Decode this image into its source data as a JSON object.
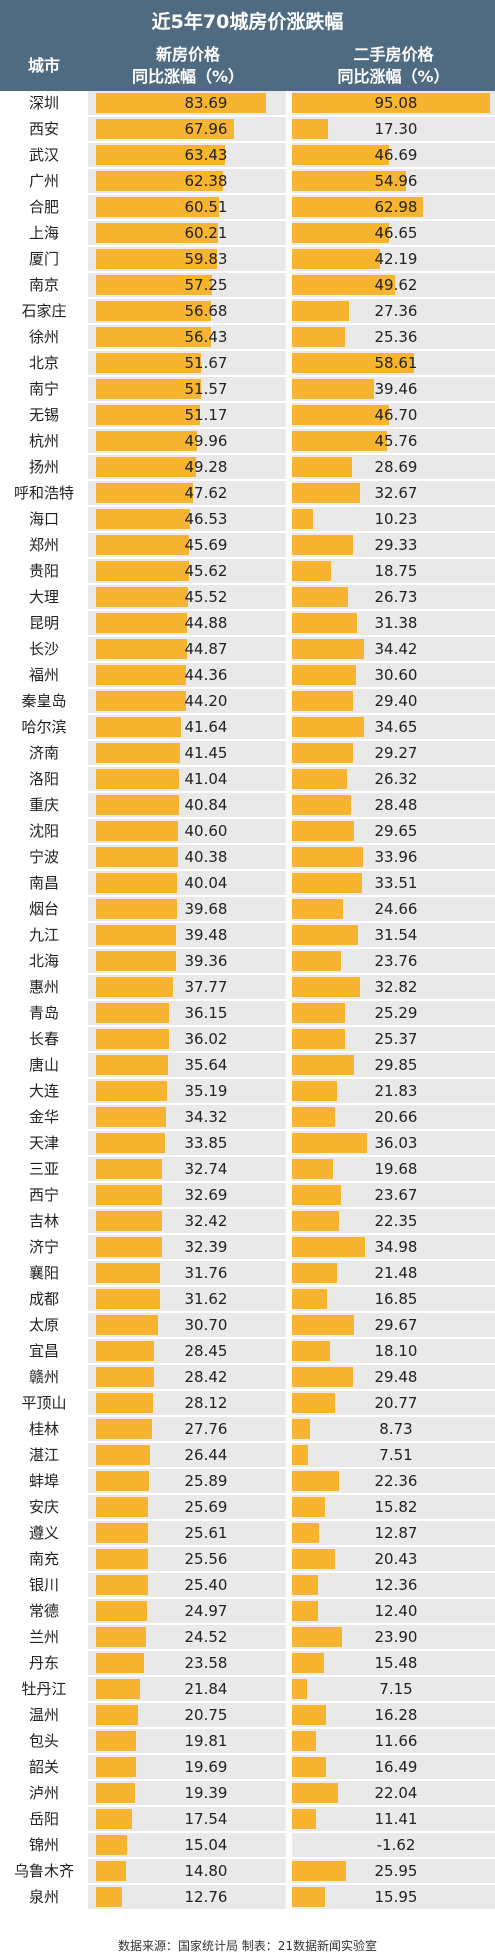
{
  "title": "近5年70城房价涨跌幅",
  "headers": {
    "city": "城市",
    "new_line1": "新房价格",
    "new_line2": "同比涨幅（%）",
    "second_line1": "二手房价格",
    "second_line2": "同比涨幅（%）"
  },
  "footer": "数据来源：国家统计局  制表：21数据新闻实验室",
  "colors": {
    "header_bg": "#4f6b82",
    "bar": "#f7b430",
    "negative_bar": "#d62b2b",
    "row_bg": "#e9e9e9"
  },
  "chart_data": {
    "type": "bar",
    "title": "近5年70城房价涨跌幅",
    "categories": [
      "深圳",
      "西安",
      "武汉",
      "广州",
      "合肥",
      "上海",
      "厦门",
      "南京",
      "石家庄",
      "徐州",
      "北京",
      "南宁",
      "无锡",
      "杭州",
      "扬州",
      "呼和浩特",
      "海口",
      "郑州",
      "贵阳",
      "大理",
      "昆明",
      "长沙",
      "福州",
      "秦皇岛",
      "哈尔滨",
      "济南",
      "洛阳",
      "重庆",
      "沈阳",
      "宁波",
      "南昌",
      "烟台",
      "九江",
      "北海",
      "惠州",
      "青岛",
      "长春",
      "唐山",
      "大连",
      "金华",
      "天津",
      "三亚",
      "西宁",
      "吉林",
      "济宁",
      "襄阳",
      "成都",
      "太原",
      "宜昌",
      "赣州",
      "平顶山",
      "桂林",
      "湛江",
      "蚌埠",
      "安庆",
      "遵义",
      "南充",
      "银川",
      "常德",
      "兰州",
      "丹东",
      "牡丹江",
      "温州",
      "包头",
      "韶关",
      "泸州",
      "岳阳",
      "锦州",
      "乌鲁木齐",
      "泉州"
    ],
    "series": [
      {
        "name": "新房价格同比涨幅（%）",
        "values": [
          83.69,
          67.96,
          63.43,
          62.38,
          60.51,
          60.21,
          59.83,
          57.25,
          56.68,
          56.43,
          51.67,
          51.57,
          51.17,
          49.96,
          49.28,
          47.62,
          46.53,
          45.69,
          45.62,
          45.52,
          44.88,
          44.87,
          44.36,
          44.2,
          41.64,
          41.45,
          41.04,
          40.84,
          40.6,
          40.38,
          40.04,
          39.68,
          39.48,
          39.36,
          37.77,
          36.15,
          36.02,
          35.64,
          35.19,
          34.32,
          33.85,
          32.74,
          32.69,
          32.42,
          32.39,
          31.76,
          31.62,
          30.7,
          28.45,
          28.42,
          28.12,
          27.76,
          26.44,
          25.89,
          25.69,
          25.61,
          25.56,
          25.4,
          24.97,
          24.52,
          23.58,
          21.84,
          20.75,
          19.81,
          19.69,
          19.39,
          17.54,
          15.04,
          14.8,
          12.76
        ]
      },
      {
        "name": "二手房价格同比涨幅（%）",
        "values": [
          95.08,
          17.3,
          46.69,
          54.96,
          62.98,
          46.65,
          42.19,
          49.62,
          27.36,
          25.36,
          58.61,
          39.46,
          46.7,
          45.76,
          28.69,
          32.67,
          10.23,
          29.33,
          18.75,
          26.73,
          31.38,
          34.42,
          30.6,
          29.4,
          34.65,
          29.27,
          26.32,
          28.48,
          29.65,
          33.96,
          33.51,
          24.66,
          31.54,
          23.76,
          32.82,
          25.29,
          25.37,
          29.85,
          21.83,
          20.66,
          36.03,
          19.68,
          23.67,
          22.35,
          34.98,
          21.48,
          16.85,
          29.67,
          18.1,
          29.48,
          20.77,
          8.73,
          7.51,
          22.36,
          15.82,
          12.87,
          20.43,
          12.36,
          12.4,
          23.9,
          15.48,
          7.15,
          16.28,
          11.66,
          16.49,
          22.04,
          11.41,
          -1.62,
          25.95,
          15.95
        ]
      }
    ],
    "value_labels": {
      "new": [
        "83.69",
        "67.96",
        "63.43",
        "62.38",
        "60.51",
        "60.21",
        "59.83",
        "57.25",
        "56.68",
        "56.43",
        "51.67",
        "51.57",
        "51.17",
        "49.96",
        "49.28",
        "47.62",
        "46.53",
        "45.69",
        "45.62",
        "45.52",
        "44.88",
        "44.87",
        "44.36",
        "44.20",
        "41.64",
        "41.45",
        "41.04",
        "40.84",
        "40.60",
        "40.38",
        "40.04",
        "39.68",
        "39.48",
        "39.36",
        "37.77",
        "36.15",
        "36.02",
        "35.64",
        "35.19",
        "34.32",
        "33.85",
        "32.74",
        "32.69",
        "32.42",
        "32.39",
        "31.76",
        "31.62",
        "30.70",
        "28.45",
        "28.42",
        "28.12",
        "27.76",
        "26.44",
        "25.89",
        "25.69",
        "25.61",
        "25.56",
        "25.40",
        "24.97",
        "24.52",
        "23.58",
        "21.84",
        "20.75",
        "19.81",
        "19.69",
        "19.39",
        "17.54",
        "15.04",
        "14.80",
        "12.76"
      ],
      "second": [
        "95.08",
        "17.30",
        "46.69",
        "54.96",
        "62.98",
        "46.65",
        "42.19",
        "49.62",
        "27.36",
        "25.36",
        "58.61",
        "39.46",
        "46.70",
        "45.76",
        "28.69",
        "32.67",
        "10.23",
        "29.33",
        "18.75",
        "26.73",
        "31.38",
        "34.42",
        "30.60",
        "29.40",
        "34.65",
        "29.27",
        "26.32",
        "28.48",
        "29.65",
        "33.96",
        "33.51",
        "24.66",
        "31.54",
        "23.76",
        "32.82",
        "25.29",
        "25.37",
        "29.85",
        "21.83",
        "20.66",
        "36.03",
        "19.68",
        "23.67",
        "22.35",
        "34.98",
        "21.48",
        "16.85",
        "29.67",
        "18.10",
        "29.48",
        "20.77",
        "8.73",
        "7.51",
        "22.36",
        "15.82",
        "12.87",
        "20.43",
        "12.36",
        "12.40",
        "23.90",
        "15.48",
        "7.15",
        "16.28",
        "11.66",
        "16.49",
        "22.04",
        "11.41",
        "-1.62",
        "25.95",
        "15.95"
      ]
    },
    "xlim": [
      0,
      95.08
    ],
    "grid": false,
    "legend": "none"
  }
}
